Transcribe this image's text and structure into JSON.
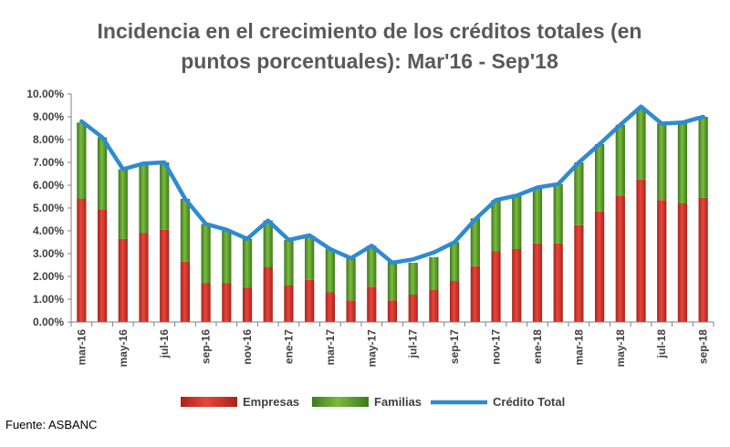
{
  "chart_data": {
    "type": "bar",
    "title": "Incidencia en el crecimiento de los créditos totales (en",
    "subtitle": "puntos porcentuales): Mar'16 - Sep'18",
    "categories": [
      "mar-16",
      "abr-16",
      "may-16",
      "jun-16",
      "jul-16",
      "ago-16",
      "sep-16",
      "oct-16",
      "nov-16",
      "dic-16",
      "ene-17",
      "feb-17",
      "mar-17",
      "abr-17",
      "may-17",
      "jun-17",
      "jul-17",
      "ago-17",
      "sep-17",
      "oct-17",
      "nov-17",
      "dic-17",
      "ene-18",
      "feb-18",
      "mar-18",
      "abr-18",
      "may-18",
      "jun-18",
      "jul-18",
      "ago-18",
      "sep-18"
    ],
    "x_tick_labels": [
      "mar-16",
      "may-16",
      "jul-16",
      "sep-16",
      "nov-16",
      "ene-17",
      "mar-17",
      "may-17",
      "jul-17",
      "sep-17",
      "nov-17",
      "ene-18",
      "mar-18",
      "may-18",
      "jul-18",
      "sep-18"
    ],
    "series": [
      {
        "name": "Empresas",
        "kind": "stacked-bar",
        "color": "#d9342b",
        "values": [
          5.4,
          4.95,
          3.65,
          3.9,
          4.05,
          2.65,
          1.7,
          1.7,
          1.5,
          2.4,
          1.6,
          1.85,
          1.3,
          0.95,
          1.55,
          0.95,
          1.2,
          1.4,
          1.8,
          2.45,
          3.1,
          3.2,
          3.45,
          3.45,
          4.25,
          4.85,
          5.55,
          6.25,
          5.35,
          5.2,
          5.45
        ]
      },
      {
        "name": "Familias",
        "kind": "stacked-bar",
        "color": "#5a9e2f",
        "values": [
          3.35,
          3.15,
          3.05,
          3.0,
          2.95,
          2.75,
          2.6,
          2.35,
          2.15,
          2.05,
          2.0,
          1.95,
          1.9,
          1.85,
          1.8,
          1.7,
          1.4,
          1.45,
          1.7,
          2.1,
          2.25,
          2.35,
          2.45,
          2.6,
          2.75,
          2.95,
          3.1,
          3.15,
          3.35,
          3.55,
          3.55
        ]
      },
      {
        "name": "Crédito Total",
        "kind": "line",
        "color": "#2e8bd1",
        "values": [
          8.8,
          8.1,
          6.7,
          6.95,
          7.0,
          5.4,
          4.3,
          4.05,
          3.65,
          4.45,
          3.6,
          3.8,
          3.2,
          2.8,
          3.35,
          2.6,
          2.75,
          3.05,
          3.5,
          4.5,
          5.35,
          5.55,
          5.9,
          6.05,
          7.0,
          7.8,
          8.65,
          9.45,
          8.7,
          8.75,
          9.0
        ]
      }
    ],
    "y_tick_labels": [
      "0.00%",
      "1.00%",
      "2.00%",
      "3.00%",
      "4.00%",
      "5.00%",
      "6.00%",
      "7.00%",
      "8.00%",
      "9.00%",
      "10.00%"
    ],
    "ylim": [
      0,
      10
    ],
    "grid": false,
    "legend": "bottom"
  },
  "source_text": "Fuente: ASBANC"
}
